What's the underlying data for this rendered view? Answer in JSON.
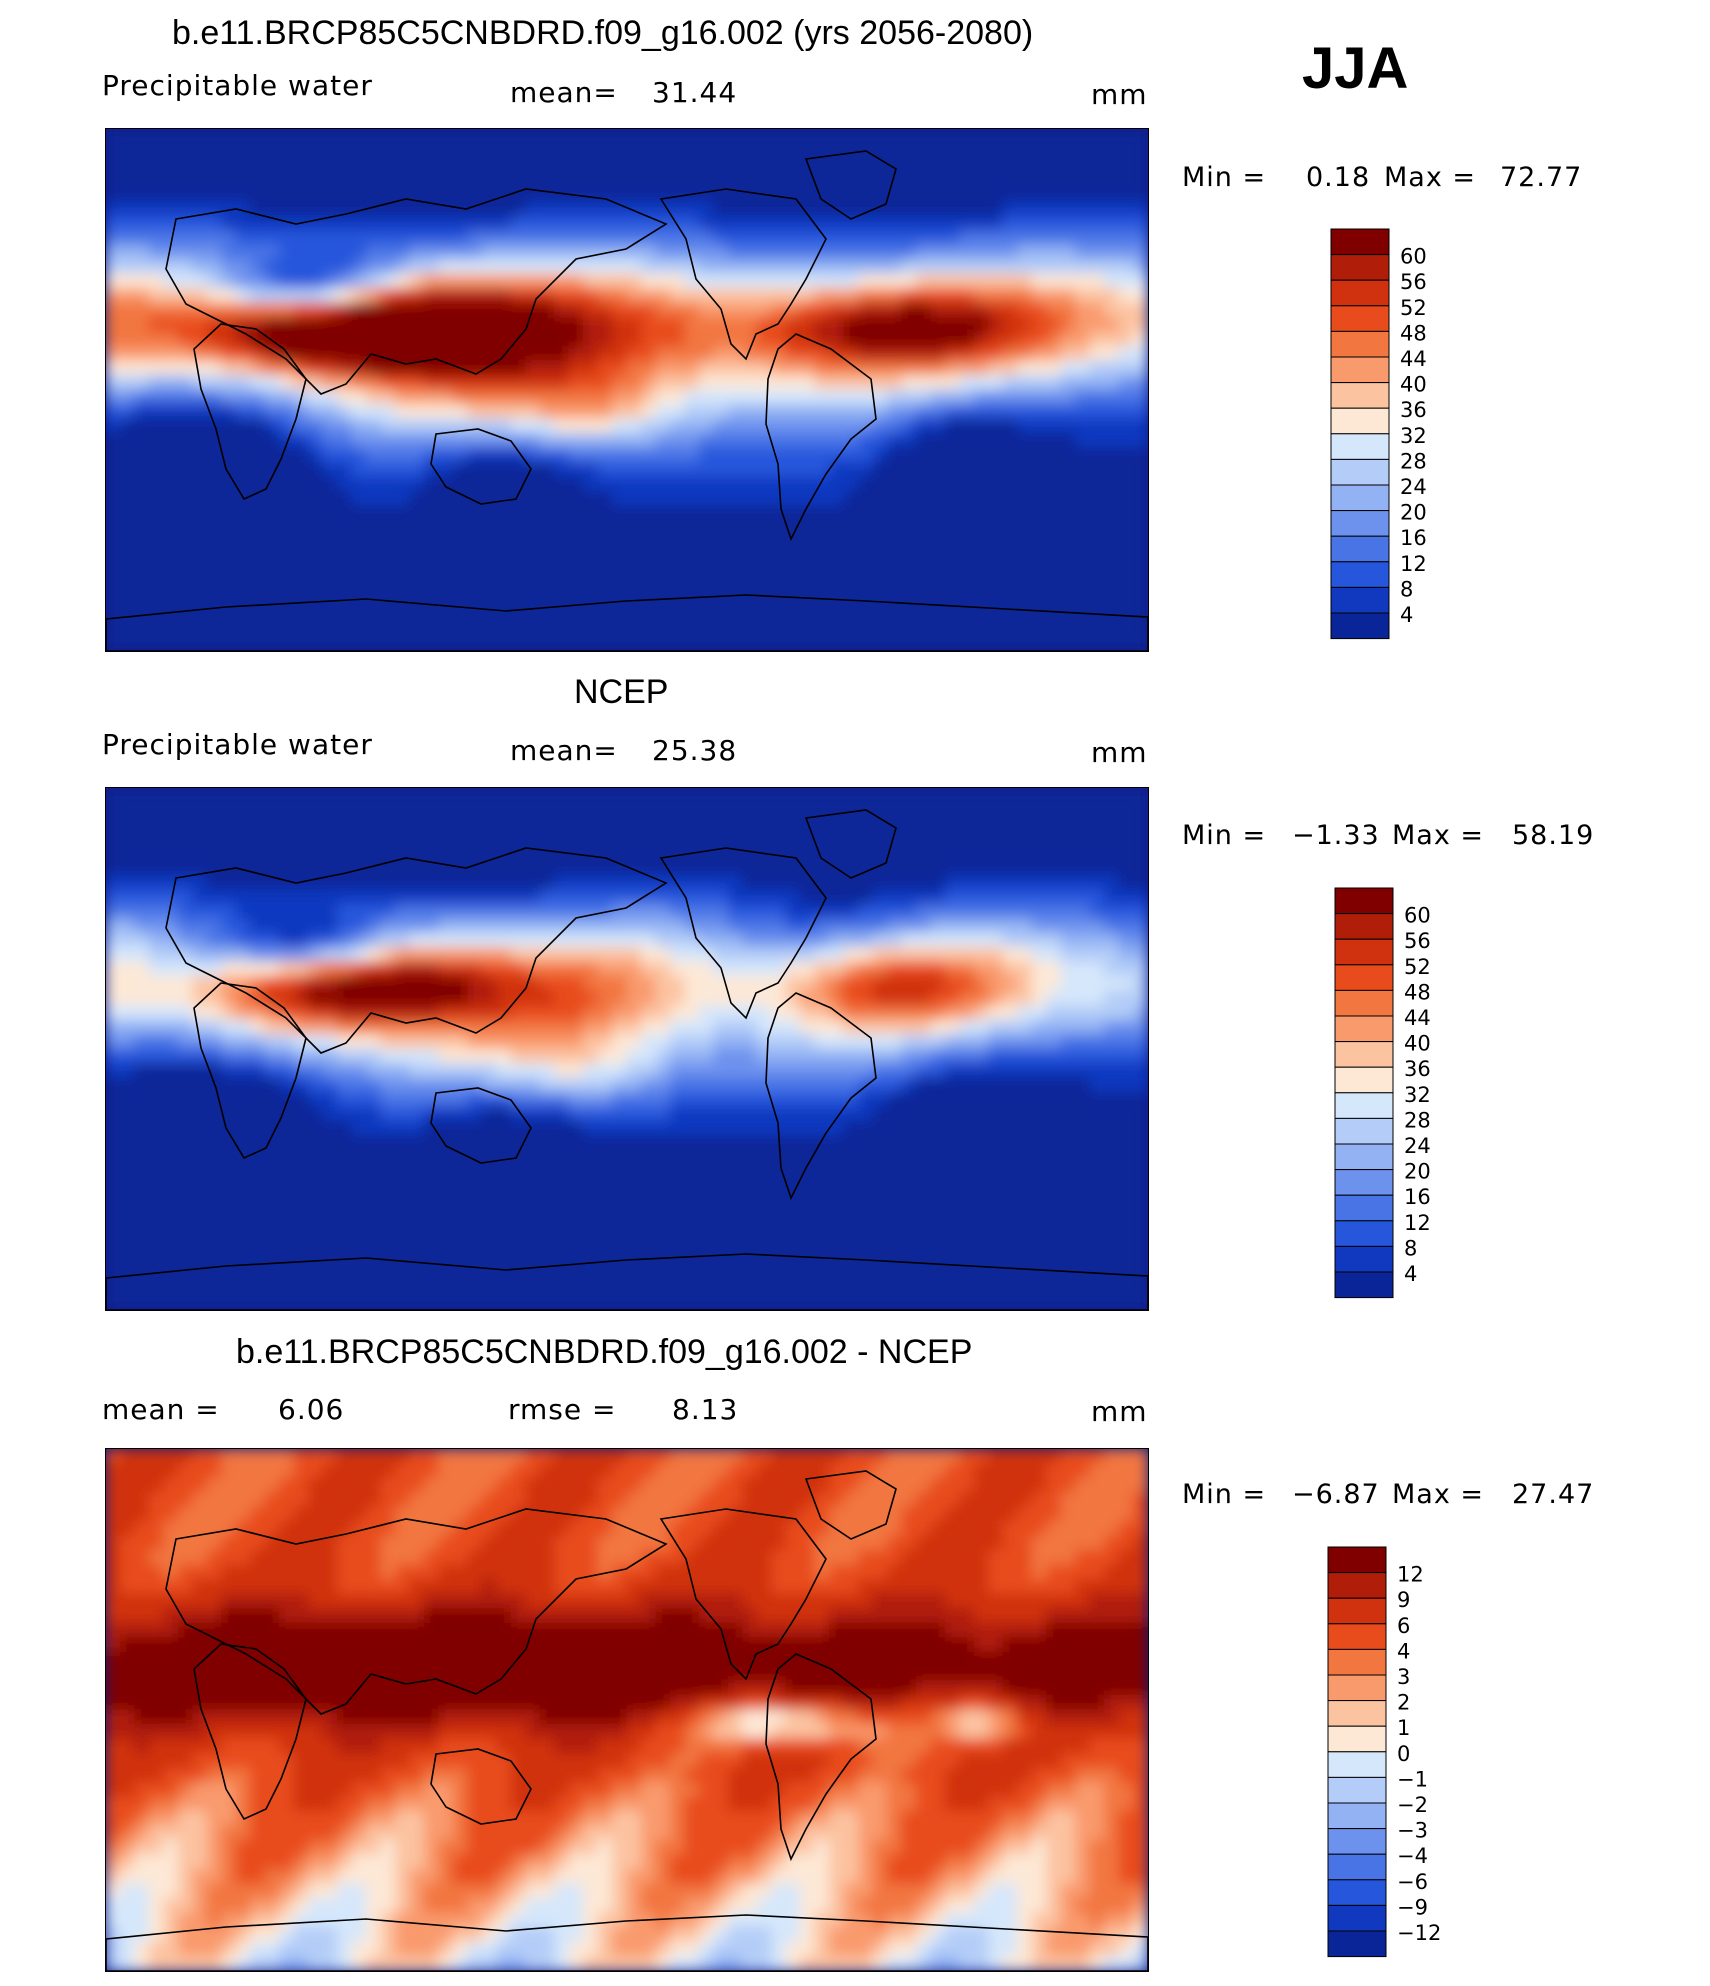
{
  "season": "JJA",
  "chart_data": [
    {
      "type": "heatmap",
      "title": "b.e11.BRCP85C5CNBDRD.f09_g16.002 (yrs 2056-2080)",
      "variable": "Precipitable water",
      "mean_label": "mean=",
      "mean_value": "31.44",
      "units": "mm",
      "min_label": "Min =",
      "min_value": "0.18",
      "max_label": "Max =",
      "max_value": "72.77",
      "colorbar_levels": [
        "60",
        "56",
        "52",
        "48",
        "44",
        "40",
        "36",
        "32",
        "28",
        "24",
        "20",
        "16",
        "12",
        "8",
        "4"
      ],
      "colors": [
        "#800000",
        "#b01e0a",
        "#d03210",
        "#e84b1c",
        "#f27640",
        "#f99a6d",
        "#fcc3a1",
        "#fde8d6",
        "#d5e7fb",
        "#b4cdf8",
        "#93b2f4",
        "#6d92ee",
        "#4874e6",
        "#2656dc",
        "#1039c0",
        "#0a2598"
      ]
    },
    {
      "type": "heatmap",
      "title": "NCEP",
      "variable": "Precipitable water",
      "mean_label": "mean=",
      "mean_value": "25.38",
      "units": "mm",
      "min_label": "Min =",
      "min_value": "−1.33",
      "max_label": "Max =",
      "max_value": "58.19",
      "colorbar_levels": [
        "60",
        "56",
        "52",
        "48",
        "44",
        "40",
        "36",
        "32",
        "28",
        "24",
        "20",
        "16",
        "12",
        "8",
        "4"
      ],
      "colors": [
        "#800000",
        "#b01e0a",
        "#d03210",
        "#e84b1c",
        "#f27640",
        "#f99a6d",
        "#fcc3a1",
        "#fde8d6",
        "#d5e7fb",
        "#b4cdf8",
        "#93b2f4",
        "#6d92ee",
        "#4874e6",
        "#2656dc",
        "#1039c0",
        "#0a2598"
      ]
    },
    {
      "type": "heatmap",
      "title": "b.e11.BRCP85C5CNBDRD.f09_g16.002 - NCEP",
      "mean_label": "mean =",
      "mean_value": "6.06",
      "rmse_label": "rmse =",
      "rmse_value": "8.13",
      "units": "mm",
      "min_label": "Min =",
      "min_value": "−6.87",
      "max_label": "Max =",
      "max_value": "27.47",
      "colorbar_levels": [
        "12",
        "9",
        "6",
        "4",
        "3",
        "2",
        "1",
        "0",
        "−1",
        "−2",
        "−3",
        "−4",
        "−6",
        "−9",
        "−12"
      ],
      "colors": [
        "#800000",
        "#b01e0a",
        "#d03210",
        "#e84b1c",
        "#f27640",
        "#f99a6d",
        "#fcc3a1",
        "#fde8d6",
        "#d5e7fb",
        "#b4cdf8",
        "#93b2f4",
        "#6d92ee",
        "#4874e6",
        "#2656dc",
        "#1039c0",
        "#0a2598"
      ]
    }
  ]
}
